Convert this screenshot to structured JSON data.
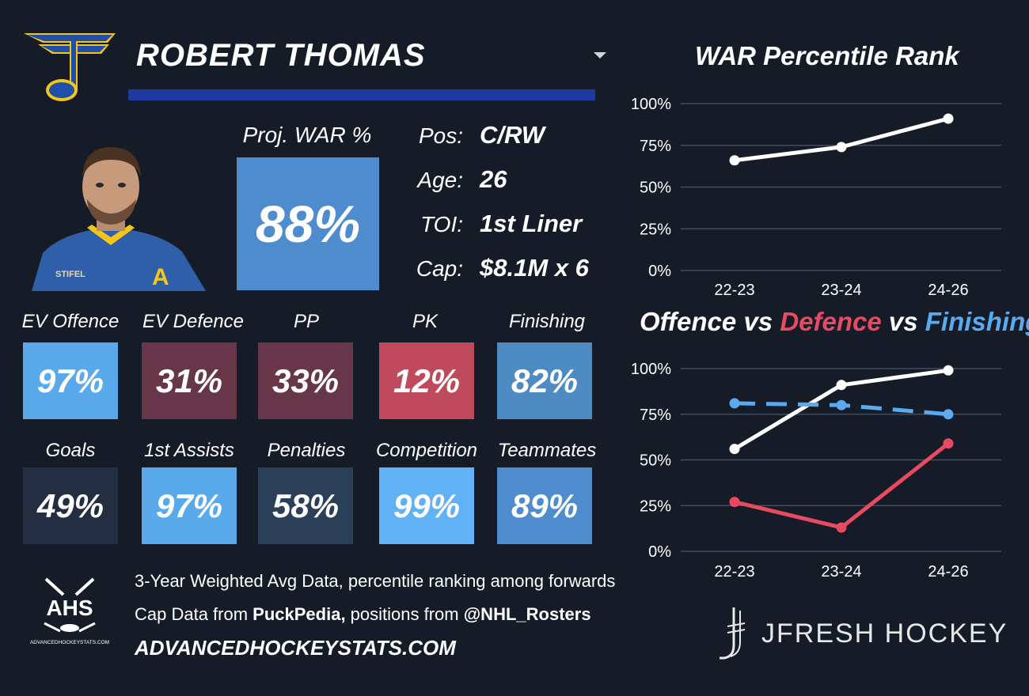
{
  "player": {
    "name": "ROBERT THOMAS",
    "proj_war_label": "Proj. WAR %",
    "proj_war_value": "88%",
    "jersey_text": "STIFEL",
    "jersey_letter": "A"
  },
  "info": [
    {
      "label": "Pos:",
      "value": "C/RW"
    },
    {
      "label": "Age:",
      "value": "26"
    },
    {
      "label": "TOI:",
      "value": "1st Liner"
    },
    {
      "label": "Cap:",
      "value": "$8.1M x 6"
    }
  ],
  "tiles": [
    {
      "label": "EV Offence",
      "value": "97%",
      "color": "#5aa9ea"
    },
    {
      "label": "EV Defence",
      "value": "31%",
      "color": "#673649"
    },
    {
      "label": "PP",
      "value": "33%",
      "color": "#673649"
    },
    {
      "label": "PK",
      "value": "12%",
      "color": "#bf4a5e"
    },
    {
      "label": "Finishing",
      "value": "82%",
      "color": "#4f8bc3"
    },
    {
      "label": "Goals",
      "value": "49%",
      "color": "#232f40"
    },
    {
      "label": "1st Assists",
      "value": "97%",
      "color": "#5aa9ea"
    },
    {
      "label": "Penalties",
      "value": "58%",
      "color": "#2b3f59"
    },
    {
      "label": "Competition",
      "value": "99%",
      "color": "#63b1f5"
    },
    {
      "label": "Teammates",
      "value": "89%",
      "color": "#4e8cce"
    }
  ],
  "footer": {
    "ahs_logo_text": "AHS",
    "ahs_logo_sub": "ADVANCEDHOCKEYSTATS.COM",
    "note1": "3-Year Weighted Avg Data, percentile ranking among forwards",
    "note2_pre": "Cap Data from ",
    "note2_bold1": "PuckPedia,",
    "note2_mid": " positions from ",
    "note2_bold2": "@NHL_Rosters",
    "site": "ADVANCEDHOCKEYSTATS.COM",
    "brand": "JFRESH HOCKEY"
  },
  "colors": {
    "background": "#151c28",
    "underline": "#1c3aa0",
    "offence": "#ffffff",
    "defence": "#e84a62",
    "finishing": "#5aaaf0",
    "gridline": "#4a5568"
  },
  "chart_data": [
    {
      "type": "line",
      "title": "WAR Percentile Rank",
      "categories": [
        "22-23",
        "23-24",
        "24-26"
      ],
      "ylim": [
        0,
        100
      ],
      "yticks": [
        "0%",
        "25%",
        "50%",
        "75%",
        "100%"
      ],
      "grid": true,
      "series": [
        {
          "values": [
            66,
            74,
            91
          ],
          "color": "#ffffff",
          "dashed": false
        }
      ]
    },
    {
      "type": "line",
      "title_parts": [
        {
          "text": "Offence",
          "color": "#ffffff"
        },
        {
          "text": " vs ",
          "color": "#ffffff"
        },
        {
          "text": "Defence",
          "color": "#e84a62"
        },
        {
          "text": " vs ",
          "color": "#ffffff"
        },
        {
          "text": "Finishing",
          "color": "#5aaaf0"
        }
      ],
      "categories": [
        "22-23",
        "23-24",
        "24-26"
      ],
      "ylim": [
        0,
        100
      ],
      "yticks": [
        "0%",
        "25%",
        "50%",
        "75%",
        "100%"
      ],
      "grid": true,
      "series": [
        {
          "name": "Offence",
          "values": [
            56,
            91,
            99
          ],
          "color": "#ffffff",
          "dashed": false
        },
        {
          "name": "Defence",
          "values": [
            27,
            13,
            59
          ],
          "color": "#e84a62",
          "dashed": false
        },
        {
          "name": "Finishing",
          "values": [
            81,
            80,
            75
          ],
          "color": "#5aaaf0",
          "dashed": true
        }
      ]
    }
  ]
}
